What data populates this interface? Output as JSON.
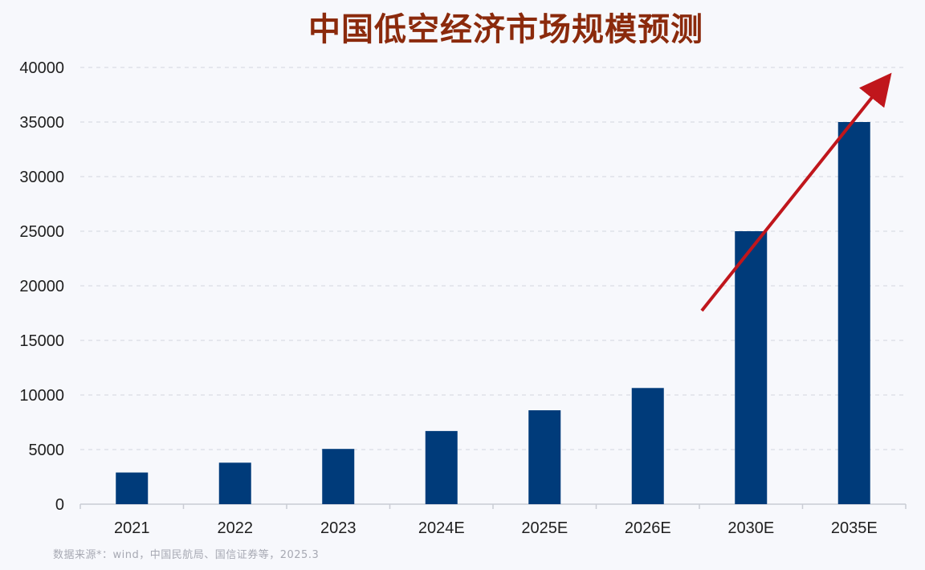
{
  "chart_data": {
    "type": "bar",
    "title": "中国低空经济市场规模预测",
    "categories": [
      "2021",
      "2022",
      "2023",
      "2024E",
      "2025E",
      "2026E",
      "2030E",
      "2035E"
    ],
    "values": [
      2900,
      3800,
      5060,
      6700,
      8600,
      10640,
      25000,
      35000
    ],
    "xlabel": "",
    "ylabel": "",
    "ylim": [
      0,
      40000
    ],
    "yticks": [
      0,
      5000,
      10000,
      15000,
      20000,
      25000,
      30000,
      35000,
      40000
    ],
    "grid": "horizontal dashed",
    "bar_color": "#003b7a",
    "trend_arrow_color": "#c0161c",
    "source": "数据来源*：wind，中国民航局、国信证券等，2025.3"
  }
}
